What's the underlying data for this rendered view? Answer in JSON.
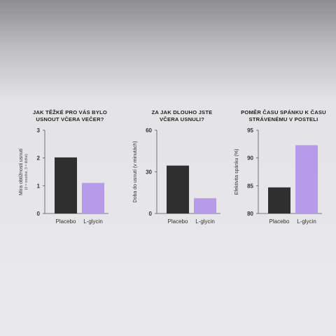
{
  "colors": {
    "placebo": "#2f2f2f",
    "glycine": "#b79ae9",
    "axis": "#555555"
  },
  "chart_data": [
    {
      "type": "bar",
      "title_lines": [
        "JAK TĚŽKÉ PRO VÁS BYLO",
        "USNOUT VČERA VEČER?"
      ],
      "categories": [
        "Placebo",
        "L-glycin"
      ],
      "values": [
        2.02,
        1.1
      ],
      "ylim": [
        0,
        3
      ],
      "yticks": [
        "0",
        "1",
        "2",
        "3"
      ],
      "ylabel": "Míra obtížnosti usnutí",
      "ylabel_sub": "(0 = snadné, 3 = těžké)"
    },
    {
      "type": "bar",
      "title_lines": [
        "ZA JAK DLOUHO JSTE",
        "VČERA USNULI?"
      ],
      "categories": [
        "Placebo",
        "L-glycin"
      ],
      "values": [
        34.5,
        11
      ],
      "ylim": [
        0,
        60
      ],
      "yticks": [
        "0",
        "30",
        "60"
      ],
      "ylabel": "Doba do usnutí (v minutách)",
      "ylabel_sub": ""
    },
    {
      "type": "bar",
      "title_lines": [
        "POMĚR ČASU SPÁNKU K ČASU",
        "STRÁVENÉMU V POSTELI"
      ],
      "categories": [
        "Placebo",
        "L-glycin"
      ],
      "values": [
        84.7,
        92.3
      ],
      "ylim": [
        80,
        95
      ],
      "yticks": [
        "80",
        "85",
        "90",
        "95"
      ],
      "ylabel": "Efektivita spánku (%)",
      "ylabel_sub": ""
    }
  ]
}
